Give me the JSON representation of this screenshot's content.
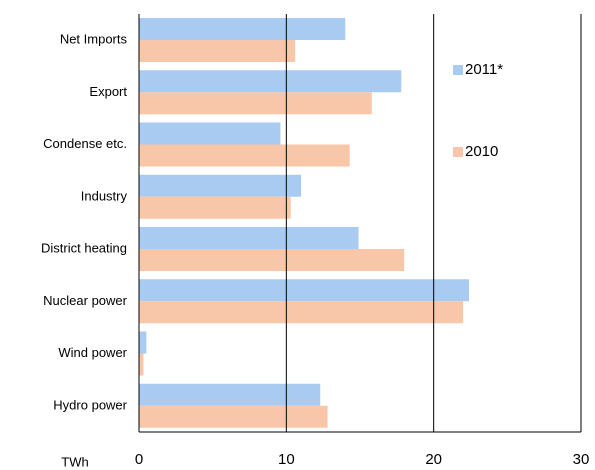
{
  "chart_data": {
    "type": "hbar",
    "categories": [
      "Net Imports",
      "Export",
      "Condense etc.",
      "Industry",
      "District heating",
      "Nuclear power",
      "Wind power",
      "Hydro power"
    ],
    "series": [
      {
        "name": "2011*",
        "color": "#a9caf1",
        "values": [
          14.0,
          17.8,
          9.6,
          11.0,
          14.9,
          22.4,
          0.5,
          12.3
        ]
      },
      {
        "name": "2010",
        "color": "#f8c6a8",
        "values": [
          10.6,
          15.8,
          14.3,
          10.3,
          18.0,
          22.0,
          0.3,
          12.8
        ]
      }
    ],
    "x_label": "TWh",
    "xlim": [
      0,
      30
    ],
    "xticks": [
      0,
      10,
      20,
      30
    ],
    "grid": true,
    "legend": "right"
  }
}
